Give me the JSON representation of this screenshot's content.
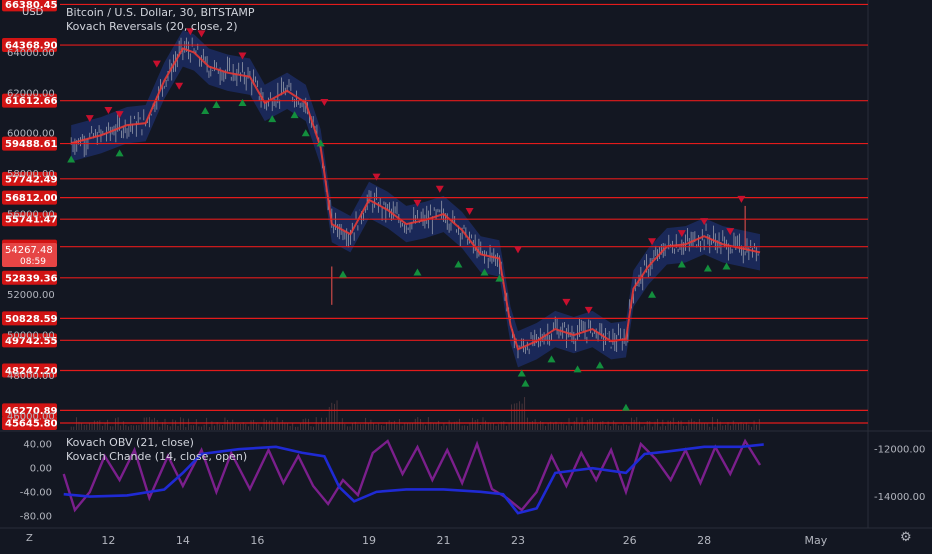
{
  "header": {
    "currency": "USD",
    "title": "Bitcoin / U.S. Dollar, 30, BITSTAMP",
    "indicator_main": "Kovach Reversals (20, close, 2)"
  },
  "lower_pane": {
    "indicator1": "Kovach OBV (21, close)",
    "indicator2": "Kovach Chande (14, close, open)",
    "left_ticks": [
      "40.00",
      "0.00",
      "-40.00",
      "-80.00"
    ],
    "right_ticks": [
      "-12000.00",
      "-14000.00"
    ]
  },
  "controls": {
    "zoom_label": "Z",
    "settings_glyph": "⚙"
  },
  "colors": {
    "background": "#131722",
    "level_line": "#e31b1b",
    "down_marker": "#c8102e",
    "up_marker": "#138f3d",
    "band": "#1e2f6b",
    "mid_line": "#e53935",
    "candle": "#b2b5be",
    "obv_line": "#1f2ad4",
    "chande_line": "#7b1f8c",
    "current_price_bg": "#e64545"
  },
  "chart_data": {
    "type": "line",
    "title": "Bitcoin / U.S. Dollar, 30, BITSTAMP",
    "y_ticks": [
      64000,
      62000,
      60000,
      58000,
      56000,
      54000,
      52000,
      50000,
      48000,
      46000
    ],
    "y_tick_labels": [
      "64000.00",
      "62000.00",
      "60000.00",
      "58000.00",
      "56000.00",
      "54000.00",
      "52000.00",
      "50000.00",
      "48000.00",
      "46000.00"
    ],
    "ylim": [
      45300,
      66600
    ],
    "x_tick_labels": [
      "12",
      "14",
      "16",
      "19",
      "21",
      "23",
      "26",
      "28",
      "May"
    ],
    "x_tick_days": [
      12,
      14,
      16,
      19,
      21,
      23,
      26,
      28,
      31
    ],
    "xlim": [
      10.7,
      32.4
    ],
    "levels": [
      66380.45,
      64368.9,
      61612.66,
      59488.61,
      57742.49,
      56812.0,
      55741.47,
      54381.19,
      52839.36,
      50828.59,
      49742.55,
      48247.2,
      46270.89,
      45645.8
    ],
    "level_labels": [
      "66380.45",
      "64368.90",
      "61612.66",
      "59488.61",
      "57742.49",
      "56812.00",
      "55741.47",
      "54381.19",
      "52839.36",
      "50828.59",
      "49742.55",
      "48247.20",
      "46270.89",
      "45645.80"
    ],
    "current_price": "54267.48",
    "countdown": "08:59",
    "band_mid": [
      [
        11.0,
        59500
      ],
      [
        11.8,
        59900
      ],
      [
        12.5,
        60400
      ],
      [
        13.0,
        60500
      ],
      [
        13.5,
        62600
      ],
      [
        14.0,
        64200
      ],
      [
        14.3,
        64000
      ],
      [
        14.7,
        63300
      ],
      [
        15.2,
        63000
      ],
      [
        15.8,
        62800
      ],
      [
        16.2,
        61500
      ],
      [
        16.8,
        62100
      ],
      [
        17.3,
        61500
      ],
      [
        17.7,
        59300
      ],
      [
        18.0,
        55500
      ],
      [
        18.5,
        55000
      ],
      [
        19.0,
        56700
      ],
      [
        19.5,
        56200
      ],
      [
        20.0,
        55500
      ],
      [
        20.5,
        55700
      ],
      [
        21.0,
        56000
      ],
      [
        21.5,
        55200
      ],
      [
        22.0,
        54000
      ],
      [
        22.5,
        53800
      ],
      [
        22.8,
        50500
      ],
      [
        23.0,
        49300
      ],
      [
        23.5,
        49700
      ],
      [
        24.0,
        50300
      ],
      [
        24.5,
        50000
      ],
      [
        25.0,
        50300
      ],
      [
        25.5,
        49700
      ],
      [
        25.9,
        49800
      ],
      [
        26.1,
        52300
      ],
      [
        26.5,
        53400
      ],
      [
        27.0,
        54400
      ],
      [
        27.5,
        54500
      ],
      [
        28.0,
        54900
      ],
      [
        28.5,
        54500
      ],
      [
        29.0,
        54300
      ],
      [
        29.5,
        54100
      ]
    ],
    "band_width": 900,
    "down_markers": [
      [
        11.5,
        60700
      ],
      [
        12.0,
        61100
      ],
      [
        12.3,
        60900
      ],
      [
        13.3,
        63400
      ],
      [
        13.9,
        62300
      ],
      [
        14.2,
        65000
      ],
      [
        14.5,
        64900
      ],
      [
        15.6,
        63800
      ],
      [
        17.8,
        61500
      ],
      [
        19.2,
        57800
      ],
      [
        20.3,
        56500
      ],
      [
        20.9,
        57200
      ],
      [
        21.7,
        56100
      ],
      [
        23.0,
        54200
      ],
      [
        24.3,
        51600
      ],
      [
        24.9,
        51200
      ],
      [
        29.0,
        56700
      ],
      [
        28.7,
        55100
      ],
      [
        28.0,
        55600
      ],
      [
        27.4,
        55000
      ],
      [
        26.6,
        54600
      ]
    ],
    "up_markers": [
      [
        11.0,
        58700
      ],
      [
        12.3,
        59000
      ],
      [
        14.6,
        61100
      ],
      [
        14.9,
        61400
      ],
      [
        15.6,
        61500
      ],
      [
        16.4,
        60700
      ],
      [
        17.0,
        60900
      ],
      [
        17.3,
        60000
      ],
      [
        17.7,
        59500
      ],
      [
        18.3,
        53000
      ],
      [
        20.3,
        53100
      ],
      [
        21.4,
        53500
      ],
      [
        22.1,
        53100
      ],
      [
        22.5,
        52800
      ],
      [
        23.1,
        48100
      ],
      [
        23.2,
        47600
      ],
      [
        23.9,
        48800
      ],
      [
        24.6,
        48300
      ],
      [
        25.2,
        48500
      ],
      [
        25.9,
        46400
      ],
      [
        26.6,
        52000
      ],
      [
        27.4,
        53500
      ],
      [
        28.1,
        53300
      ],
      [
        28.6,
        53400
      ]
    ],
    "obv_series": [
      [
        10.8,
        -13900
      ],
      [
        11.5,
        -14000
      ],
      [
        12.5,
        -13950
      ],
      [
        13.5,
        -13700
      ],
      [
        14.0,
        -13000
      ],
      [
        14.5,
        -12200
      ],
      [
        15.5,
        -12000
      ],
      [
        16.5,
        -11900
      ],
      [
        17.2,
        -12150
      ],
      [
        17.8,
        -12300
      ],
      [
        18.2,
        -13600
      ],
      [
        18.6,
        -14200
      ],
      [
        19.2,
        -13800
      ],
      [
        20.0,
        -13700
      ],
      [
        21.0,
        -13700
      ],
      [
        22.0,
        -13800
      ],
      [
        22.6,
        -13900
      ],
      [
        23.0,
        -14700
      ],
      [
        23.5,
        -14500
      ],
      [
        24.0,
        -13000
      ],
      [
        25.0,
        -12800
      ],
      [
        25.9,
        -13000
      ],
      [
        26.4,
        -12200
      ],
      [
        27.0,
        -12100
      ],
      [
        28.0,
        -11900
      ],
      [
        29.0,
        -11900
      ],
      [
        29.6,
        -11800
      ]
    ],
    "chande_series": [
      [
        10.8,
        -10
      ],
      [
        11.1,
        -70
      ],
      [
        11.5,
        -40
      ],
      [
        11.9,
        20
      ],
      [
        12.3,
        -20
      ],
      [
        12.7,
        30
      ],
      [
        13.1,
        -50
      ],
      [
        13.6,
        20
      ],
      [
        14.0,
        -30
      ],
      [
        14.5,
        30
      ],
      [
        14.9,
        -40
      ],
      [
        15.3,
        25
      ],
      [
        15.8,
        -35
      ],
      [
        16.3,
        30
      ],
      [
        16.7,
        -25
      ],
      [
        17.1,
        20
      ],
      [
        17.5,
        -30
      ],
      [
        17.9,
        -60
      ],
      [
        18.3,
        -20
      ],
      [
        18.7,
        -45
      ],
      [
        19.1,
        25
      ],
      [
        19.5,
        45
      ],
      [
        19.9,
        -10
      ],
      [
        20.3,
        35
      ],
      [
        20.7,
        -20
      ],
      [
        21.1,
        30
      ],
      [
        21.5,
        -25
      ],
      [
        21.9,
        40
      ],
      [
        22.3,
        -35
      ],
      [
        22.7,
        -50
      ],
      [
        23.1,
        -70
      ],
      [
        23.5,
        -40
      ],
      [
        23.9,
        20
      ],
      [
        24.3,
        -30
      ],
      [
        24.7,
        25
      ],
      [
        25.1,
        -20
      ],
      [
        25.5,
        30
      ],
      [
        25.9,
        -40
      ],
      [
        26.3,
        40
      ],
      [
        26.7,
        15
      ],
      [
        27.1,
        -20
      ],
      [
        27.5,
        30
      ],
      [
        27.9,
        -25
      ],
      [
        28.3,
        35
      ],
      [
        28.7,
        -10
      ],
      [
        29.1,
        45
      ],
      [
        29.5,
        5
      ]
    ],
    "lower_left_ylim": [
      -95,
      55
    ],
    "lower_right_ylim": [
      -15200,
      -11400
    ]
  }
}
